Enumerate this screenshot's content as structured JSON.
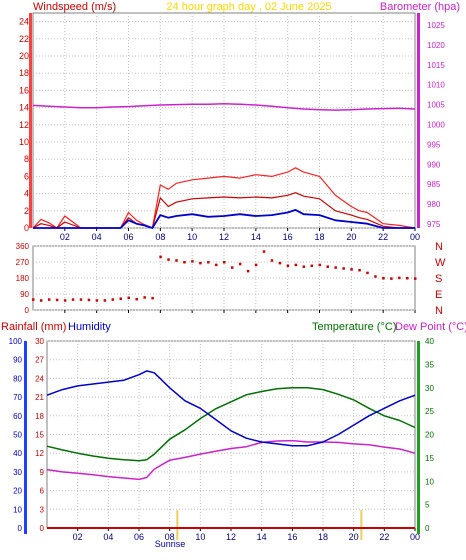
{
  "colors": {
    "background": "#ffffff",
    "frame": "#808080",
    "grid": "#c0c0c0",
    "title": "#ffd700",
    "wind": "#cc0000",
    "gust": "#ff2020",
    "avg_wind": "#0000cc",
    "barometer": "#cc22cc",
    "direction": "#cc0000",
    "rain": "#cc0000",
    "humidity": "#0000cc",
    "temperature": "#007000",
    "dewpoint": "#cc22cc",
    "sun_marker": "#e8d060"
  },
  "chart_data": [
    {
      "type": "line",
      "title": "24 hour graph day , 02 June 2025",
      "left_axis_label": "Windspeed (m/s)",
      "right_axis_label": "Barometer (hpa)",
      "grid": true,
      "x_ticks": [
        "02",
        "04",
        "06",
        "08",
        "10",
        "12",
        "14",
        "16",
        "18",
        "20",
        "22",
        "00"
      ],
      "xlim": [
        0,
        24
      ],
      "left_ylim": [
        0,
        25
      ],
      "left_ticks": [
        "0",
        "2",
        "4",
        "6",
        "8",
        "10",
        "12",
        "14",
        "16",
        "18",
        "20",
        "22",
        "24"
      ],
      "right_ylim": [
        974,
        1028
      ],
      "right_ticks": [
        "975",
        "980",
        "985",
        "990",
        "995",
        "1000",
        "1005",
        "1010",
        "1015",
        "1020",
        "1025"
      ],
      "series": [
        {
          "axis": "right",
          "x": [
            0,
            1,
            2,
            3,
            4,
            5,
            6,
            7,
            8,
            9,
            10,
            11,
            12,
            13,
            14,
            15,
            16,
            17,
            18,
            19,
            20,
            21,
            22,
            23,
            24
          ],
          "values": [
            1004.8,
            1004.6,
            1004.4,
            1004.2,
            1004.2,
            1004.4,
            1004.5,
            1004.7,
            1004.9,
            1005.0,
            1005.1,
            1005.1,
            1005.2,
            1005.1,
            1004.9,
            1004.6,
            1004.2,
            1003.9,
            1003.7,
            1003.6,
            1003.7,
            1003.9,
            1004.0,
            1004.1,
            1003.9
          ]
        },
        {
          "axis": "left",
          "x": [
            0,
            0.5,
            1,
            1.5,
            2,
            3,
            4,
            5,
            5.5,
            6,
            6.5,
            7,
            7.5,
            8,
            8.5,
            9,
            10,
            11,
            12,
            13,
            14,
            15,
            16,
            16.5,
            17,
            18,
            19,
            20,
            20.5,
            21,
            22,
            23,
            24
          ],
          "values": [
            0,
            0.5,
            0.3,
            0,
            0.7,
            0,
            0,
            0,
            0,
            1.2,
            0.5,
            0.3,
            0,
            3.5,
            2.5,
            3.0,
            3.4,
            3.5,
            3.6,
            3.5,
            3.6,
            3.5,
            3.8,
            4.1,
            3.7,
            3.4,
            2.0,
            1.5,
            1.2,
            1.0,
            0.2,
            0,
            0
          ]
        },
        {
          "axis": "left",
          "x": [
            0,
            0.5,
            1,
            1.5,
            2,
            3,
            4,
            5,
            5.5,
            6,
            6.5,
            7,
            7.5,
            8,
            8.5,
            9,
            10,
            11,
            12,
            13,
            14,
            15,
            16,
            16.5,
            17,
            18,
            19,
            20,
            20.5,
            21,
            22,
            23,
            24
          ],
          "values": [
            0,
            1,
            0.6,
            0,
            1.4,
            0,
            0,
            0,
            0,
            1.8,
            0.9,
            0.4,
            0,
            5.0,
            4.5,
            5.2,
            5.6,
            5.8,
            6.0,
            5.8,
            6.2,
            6.0,
            6.5,
            7.0,
            6.5,
            6.0,
            3.8,
            2.5,
            2.0,
            1.8,
            0.5,
            0.3,
            0
          ]
        },
        {
          "axis": "left",
          "x": [
            0,
            1,
            2,
            3,
            4,
            5,
            5.5,
            6,
            6.5,
            7,
            7.5,
            8,
            8.5,
            9,
            10,
            11,
            12,
            13,
            14,
            15,
            16,
            16.5,
            17,
            18,
            19,
            20,
            20.5,
            21,
            22,
            23,
            24
          ],
          "values": [
            0,
            0,
            0,
            0,
            0,
            0,
            0,
            0.9,
            0.5,
            0.3,
            0,
            1.5,
            1.2,
            1.4,
            1.6,
            1.3,
            1.4,
            1.6,
            1.4,
            1.5,
            1.8,
            2.1,
            1.6,
            1.5,
            0.9,
            0.7,
            0.6,
            0.5,
            0,
            0,
            0
          ]
        }
      ]
    },
    {
      "type": "scatter",
      "left_ticks": [
        "0",
        "90",
        "180",
        "270",
        "360"
      ],
      "ylim": [
        0,
        360
      ],
      "right_labels": [
        "N",
        "W",
        "S",
        "E",
        "N"
      ],
      "x_ticks": [
        "02",
        "04",
        "06",
        "08",
        "10",
        "12",
        "14",
        "16",
        "18",
        "20",
        "22",
        "00"
      ],
      "xlim": [
        0,
        24
      ],
      "series": [
        {
          "x": [
            0,
            0.5,
            1,
            1.5,
            2,
            2.5,
            3,
            3.5,
            4,
            4.5,
            5,
            5.5,
            6,
            6.5,
            7,
            7.5,
            8,
            8.5,
            9,
            9.5,
            10,
            10.5,
            11,
            11.5,
            12,
            12.5,
            13,
            13.5,
            14,
            14.5,
            15,
            15.5,
            16,
            16.5,
            17,
            17.5,
            18,
            18.5,
            19,
            19.5,
            20,
            20.5,
            21,
            21.5,
            22,
            22.5,
            23,
            23.5,
            24
          ],
          "values": [
            60,
            55,
            60,
            58,
            55,
            60,
            60,
            58,
            55,
            55,
            60,
            65,
            70,
            62,
            72,
            68,
            300,
            285,
            280,
            270,
            275,
            265,
            270,
            255,
            270,
            240,
            260,
            220,
            255,
            330,
            280,
            265,
            250,
            255,
            245,
            250,
            255,
            245,
            240,
            235,
            230,
            225,
            210,
            190,
            180,
            178,
            182,
            180,
            178
          ]
        }
      ]
    },
    {
      "type": "line",
      "left_axis_labels": [
        "Rainfall (mm)",
        "Humidity"
      ],
      "right_axis_labels": [
        "Temperature (°C)",
        "Dew Point (°C)"
      ],
      "grid": true,
      "x_ticks": [
        "02",
        "04",
        "06",
        "08",
        "10",
        "12",
        "14",
        "16",
        "18",
        "20",
        "22",
        "00"
      ],
      "xlim": [
        0,
        24
      ],
      "humidity_ticks": [
        "0",
        "10",
        "20",
        "30",
        "40",
        "50",
        "60",
        "70",
        "80",
        "90",
        "100"
      ],
      "humidity_ylim": [
        0,
        100
      ],
      "rain_ticks": [
        "0",
        "3",
        "6",
        "9",
        "12",
        "15",
        "18",
        "21",
        "24",
        "27",
        "30"
      ],
      "rain_ylim": [
        0,
        30
      ],
      "temp_ticks": [
        "0",
        "5",
        "10",
        "15",
        "20",
        "25",
        "30",
        "35",
        "40"
      ],
      "temp_ylim": [
        0,
        40
      ],
      "sunrise_label": "Sunrise",
      "sunrise_hour": 8.5,
      "sunset_hour": 20.5,
      "series": [
        {
          "name": "Humidity",
          "axis": "humidity",
          "x": [
            0,
            1,
            2,
            3,
            4,
            5,
            6,
            6.5,
            7,
            8,
            9,
            10,
            11,
            12,
            13,
            14,
            15,
            16,
            17,
            18,
            19,
            20,
            21,
            22,
            23,
            24
          ],
          "values": [
            71,
            74,
            76,
            77,
            78,
            79,
            82,
            84,
            83,
            75,
            68,
            64,
            58,
            52,
            48,
            46,
            45,
            44,
            44,
            46,
            50,
            55,
            60,
            64,
            68,
            71
          ]
        },
        {
          "name": "Temperature (°C)",
          "axis": "temp",
          "x": [
            0,
            1,
            2,
            3,
            4,
            5,
            6,
            6.5,
            7,
            8,
            9,
            10,
            11,
            12,
            13,
            14,
            15,
            16,
            17,
            18,
            19,
            20,
            21,
            22,
            23,
            24
          ],
          "values": [
            17.5,
            16.7,
            16.0,
            15.4,
            14.9,
            14.6,
            14.4,
            14.6,
            15.8,
            19.0,
            21.0,
            23.4,
            25.5,
            27.0,
            28.5,
            29.2,
            29.8,
            30.0,
            30.0,
            29.6,
            28.6,
            27.4,
            25.6,
            24.0,
            23.0,
            21.5
          ]
        },
        {
          "name": "Dew Point (°C)",
          "axis": "temp",
          "x": [
            0,
            1,
            2,
            3,
            4,
            5,
            6,
            6.5,
            7,
            8,
            9,
            10,
            11,
            12,
            13,
            14,
            15,
            16,
            17,
            18,
            19,
            20,
            21,
            22,
            23,
            24
          ],
          "values": [
            12.5,
            12.0,
            11.7,
            11.4,
            11.0,
            10.7,
            10.4,
            10.8,
            12.6,
            14.5,
            15.1,
            15.8,
            16.4,
            17.0,
            17.4,
            18.3,
            18.6,
            18.7,
            18.4,
            18.4,
            18.3,
            18.0,
            17.8,
            17.3,
            16.9,
            16.0
          ]
        },
        {
          "name": "Rainfall (mm)",
          "axis": "rain",
          "x": [
            0,
            24
          ],
          "values": [
            0,
            0
          ]
        }
      ]
    }
  ]
}
